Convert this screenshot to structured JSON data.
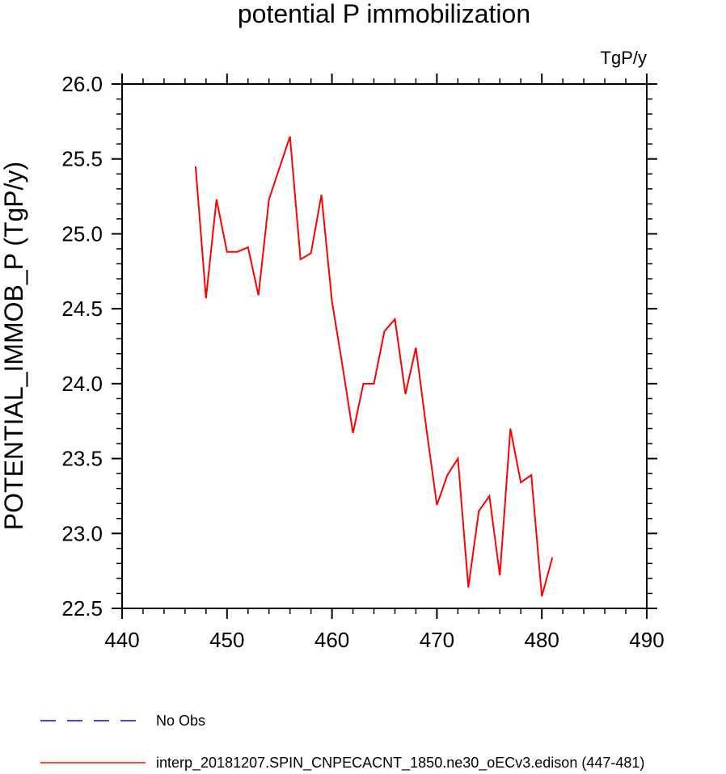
{
  "chart_data": {
    "type": "line",
    "title": "potential P immobilization",
    "units_label": "TgP/y",
    "ylabel": "POTENTIAL_IMMOB_P  (TgP/y)",
    "xlim": [
      440,
      490
    ],
    "ylim": [
      22.5,
      26.0
    ],
    "x_ticks": [
      440,
      450,
      460,
      470,
      480,
      490
    ],
    "x_tick_labels": [
      "440",
      "450",
      "460",
      "470",
      "480",
      "490"
    ],
    "y_ticks": [
      22.5,
      23.0,
      23.5,
      24.0,
      24.5,
      25.0,
      25.5,
      26.0
    ],
    "y_tick_labels": [
      "22.5",
      "23.0",
      "23.5",
      "24.0",
      "24.5",
      "25.0",
      "25.5",
      "26.0"
    ],
    "grid": false,
    "legend_position": "bottom",
    "series": [
      {
        "name": "interp_20181207.SPIN_CNPECACNT_1850.ne30_oECv3.edison (447-481)",
        "color": "#ff0000",
        "dash": "solid",
        "x": [
          447,
          448,
          449,
          450,
          451,
          452,
          453,
          454,
          455,
          456,
          457,
          458,
          459,
          460,
          461,
          462,
          463,
          464,
          465,
          466,
          467,
          468,
          469,
          470,
          471,
          472,
          473,
          474,
          475,
          476,
          477,
          478,
          479,
          480,
          481
        ],
        "y": [
          25.45,
          24.57,
          25.23,
          24.88,
          24.88,
          24.91,
          24.59,
          25.23,
          25.44,
          25.65,
          24.83,
          24.87,
          25.26,
          24.55,
          24.12,
          23.67,
          24.0,
          24.0,
          24.35,
          24.43,
          23.93,
          24.24,
          23.7,
          23.19,
          23.39,
          23.5,
          22.64,
          23.15,
          23.25,
          22.72,
          23.7,
          23.34,
          23.39,
          22.58,
          22.84
        ]
      }
    ],
    "legend": [
      {
        "label": "No Obs",
        "color": "#0000ff",
        "dash": "dashed"
      },
      {
        "label": "interp_20181207.SPIN_CNPECACNT_1850.ne30_oECv3.edison (447-481)",
        "color": "#ff0000",
        "dash": "solid"
      }
    ]
  }
}
